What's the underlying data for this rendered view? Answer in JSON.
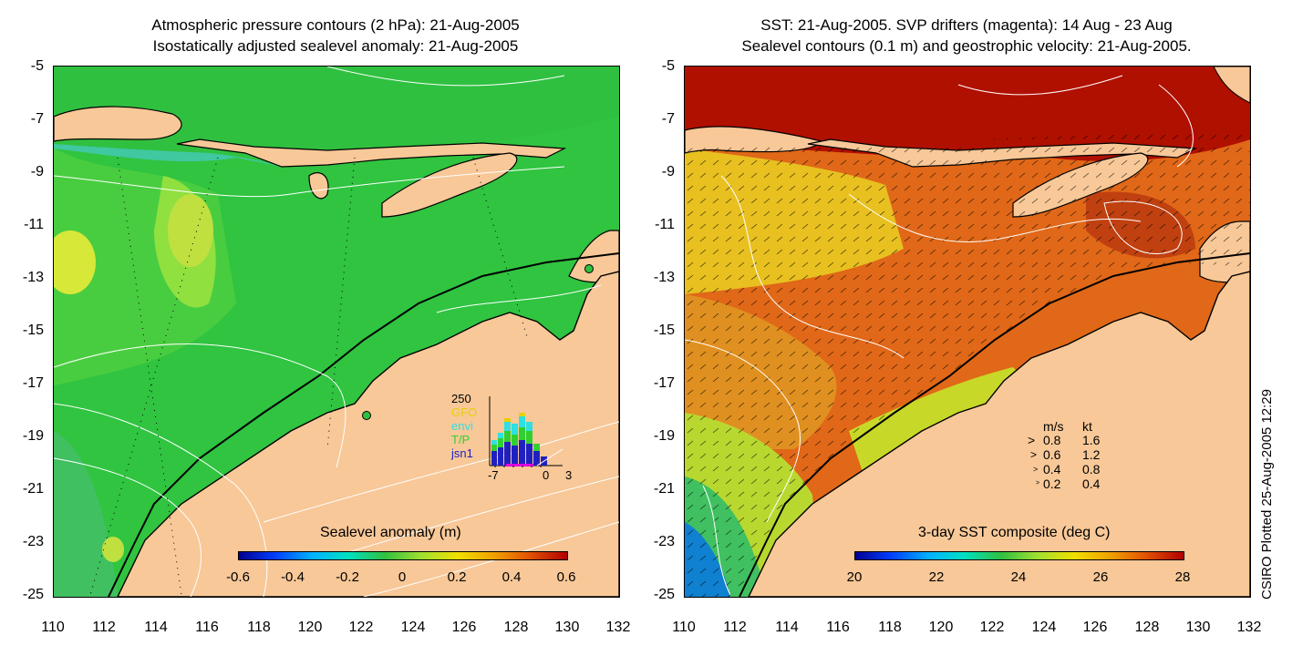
{
  "left_panel": {
    "title_line1": "Atmospheric pressure contours (2 hPa): 21-Aug-2005",
    "title_line2": "Isostatically adjusted sealevel anomaly: 21-Aug-2005",
    "colorbar": {
      "label": "Sealevel anomaly (m)",
      "ticks": [
        "-0.6",
        "-0.4",
        "-0.2",
        "0",
        "0.2",
        "0.4",
        "0.6"
      ],
      "range": [
        -0.6,
        0.6
      ]
    },
    "histogram_legend": {
      "max_label": "250",
      "series": [
        "GFO",
        "envi",
        "T/P",
        "jsn1"
      ],
      "series_colors": [
        "#e8d000",
        "#30e0e0",
        "#30d030",
        "#2020c0"
      ],
      "x_ticks": [
        "-7",
        "0",
        "3"
      ]
    }
  },
  "right_panel": {
    "title_line1": "SST: 21-Aug-2005. SVP drifters (magenta): 14 Aug - 23 Aug",
    "title_line2": "Sealevel contours (0.1 m) and geostrophic velocity: 21-Aug-2005.",
    "colorbar": {
      "label": "3-day SST composite (deg C)",
      "ticks": [
        "20",
        "22",
        "24",
        "26",
        "28"
      ],
      "range": [
        20,
        28
      ]
    },
    "velocity_legend": {
      "header_ms": "m/s",
      "header_kt": "kt",
      "rows": [
        {
          "ms": "0.8",
          "kt": "1.6"
        },
        {
          "ms": "0.6",
          "kt": "1.2"
        },
        {
          "ms": "0.4",
          "kt": "0.8"
        },
        {
          "ms": "0.2",
          "kt": "0.4"
        }
      ]
    }
  },
  "y_axis_ticks": [
    "-5",
    "-7",
    "-9",
    "-11",
    "-13",
    "-15",
    "-17",
    "-19",
    "-21",
    "-23",
    "-25"
  ],
  "x_axis_ticks": [
    "110",
    "112",
    "114",
    "116",
    "118",
    "120",
    "122",
    "124",
    "126",
    "128",
    "130",
    "132"
  ],
  "side_label": "CSIRO Plotted 25-Aug-2005 12:29",
  "colors": {
    "land": "#f8c898",
    "ocean_green": "#28c040",
    "sst_warm": "#e06010",
    "sst_hot": "#b01000"
  }
}
